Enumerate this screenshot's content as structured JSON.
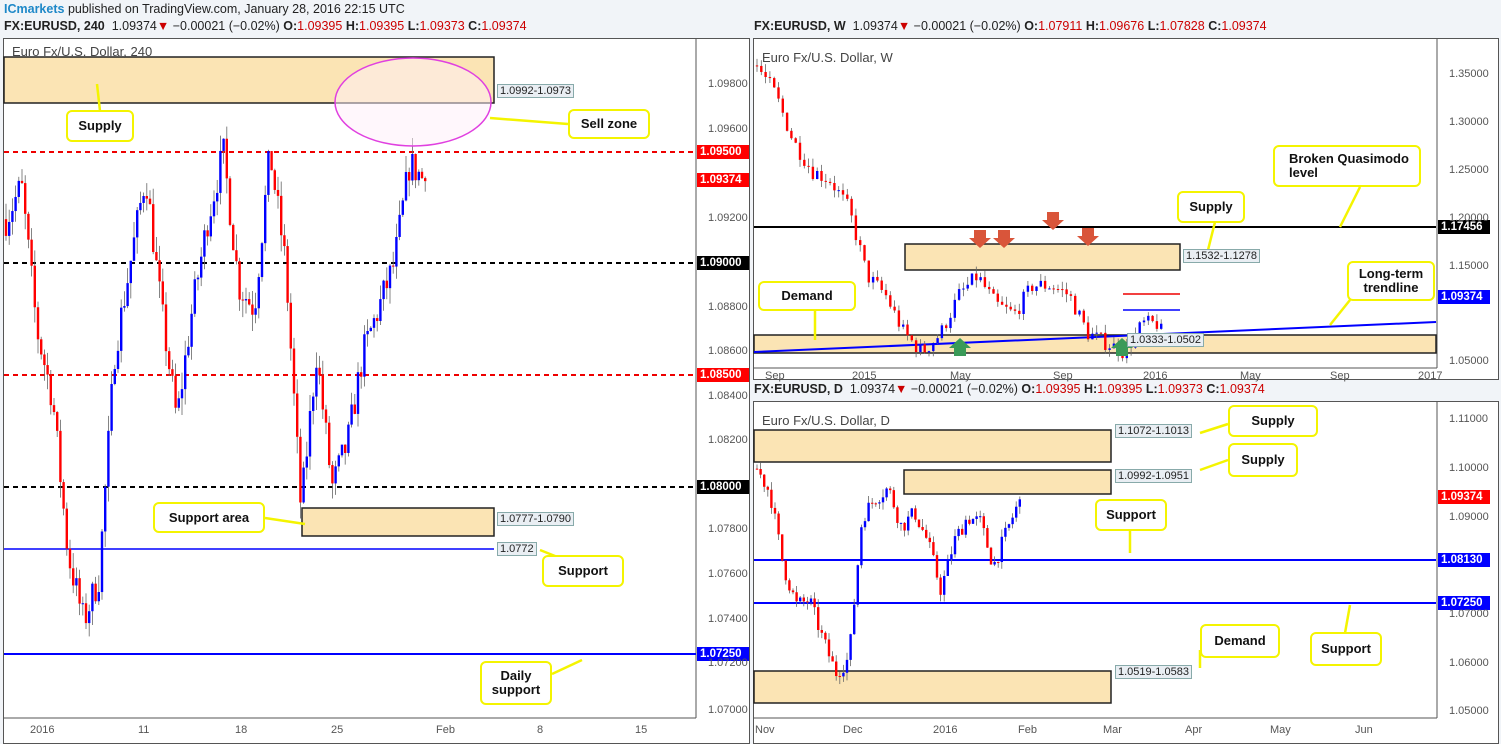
{
  "publisher": {
    "name": "ICmarkets",
    "text": "published on TradingView.com, January 28, 2016 22:15 UTC"
  },
  "charts": [
    {
      "symbol": "FX:EURUSD, 240",
      "last": "1.09374",
      "change": "−0.00021 (−0.02%)",
      "o": "1.09395",
      "h": "1.09395",
      "l": "1.09373",
      "c": "1.09374",
      "title": "Euro Fx/U.S. Dollar, 240"
    },
    {
      "symbol": "FX:EURUSD, W",
      "last": "1.09374",
      "change": "−0.00021 (−0.02%)",
      "o": "1.07911",
      "h": "1.09676",
      "l": "1.07828",
      "c": "1.09374",
      "title": "Euro Fx/U.S. Dollar, W"
    },
    {
      "symbol": "FX:EURUSD, D",
      "last": "1.09374",
      "change": "−0.00021 (−0.02%)",
      "o": "1.09395",
      "h": "1.09395",
      "l": "1.09373",
      "c": "1.09374",
      "title": "Euro Fx/U.S. Dollar, D"
    }
  ],
  "colors": {
    "up": "#0000ff",
    "down": "#ff0000",
    "zone": "#fbe4b4",
    "callout_border": "#f4f400"
  },
  "chart_data": [
    {
      "type": "candlestick",
      "timeframe": "240",
      "ylim": [
        1.0695,
        1.0995
      ],
      "y_ticks": [
        "1.09800",
        "1.09600",
        "1.09200",
        "1.08800",
        "1.08600",
        "1.08400",
        "1.08200",
        "1.07800",
        "1.07600",
        "1.07400",
        "1.07200",
        "1.07000"
      ],
      "x_ticks": [
        "2016",
        "11",
        "18",
        "25",
        "Feb",
        "8",
        "15"
      ],
      "close_path": [
        1.092,
        1.0935,
        1.087,
        1.084,
        1.077,
        1.074,
        1.076,
        1.086,
        1.09,
        1.094,
        1.088,
        1.083,
        1.088,
        1.092,
        1.095,
        1.089,
        1.088,
        1.095,
        1.09,
        1.079,
        1.086,
        1.08,
        1.082,
        1.086,
        1.088,
        1.09,
        1.0945,
        1.0937
      ],
      "levels": [
        {
          "price": "1.09500",
          "style": "red-dashed"
        },
        {
          "price": "1.09000",
          "style": "black-dashed"
        },
        {
          "price": "1.08500",
          "style": "red-dashed"
        },
        {
          "price": "1.08000",
          "style": "black-dashed"
        },
        {
          "price": "1.07250",
          "style": "blue"
        }
      ],
      "current_price": "1.09374",
      "zones": [
        {
          "label": "1.0992-1.0973"
        },
        {
          "label": "1.0777-1.0790"
        }
      ],
      "support_line": "1.0772",
      "annotations": [
        "Supply",
        "Sell zone",
        "Support area",
        "Support",
        "Daily support"
      ]
    },
    {
      "type": "candlestick",
      "timeframe": "W",
      "ylim": [
        1.03,
        1.37
      ],
      "y_ticks": [
        "1.35000",
        "1.30000",
        "1.25000",
        "1.20000",
        "1.15000",
        "1.05000"
      ],
      "x_ticks": [
        "Sep",
        "2015",
        "May",
        "Sep",
        "2016",
        "May",
        "Sep",
        "2017"
      ],
      "close_path": [
        1.36,
        1.33,
        1.28,
        1.25,
        1.24,
        1.21,
        1.14,
        1.12,
        1.08,
        1.06,
        1.08,
        1.12,
        1.14,
        1.11,
        1.1,
        1.13,
        1.13,
        1.12,
        1.08,
        1.07,
        1.06,
        1.09,
        1.09
      ],
      "levels": [
        {
          "price": "1.17456",
          "style": "black"
        }
      ],
      "current_price": "1.09374",
      "zones": [
        {
          "label": "1.1532-1.1278"
        },
        {
          "label": "1.0333-1.0502"
        }
      ],
      "annotations": [
        "Broken Quasimodo level",
        "Supply",
        "Long-term trendline",
        "Demand"
      ]
    },
    {
      "type": "candlestick",
      "timeframe": "D",
      "ylim": [
        1.046,
        1.114
      ],
      "y_ticks": [
        "1.11000",
        "1.10000",
        "1.09000",
        "1.07000",
        "1.06000",
        "1.05000"
      ],
      "x_ticks": [
        "Nov",
        "Dec",
        "2016",
        "Feb",
        "Mar",
        "Apr",
        "May",
        "Jun"
      ],
      "close_path": [
        1.1,
        1.095,
        1.08,
        1.072,
        1.073,
        1.065,
        1.058,
        1.061,
        1.09,
        1.094,
        1.096,
        1.088,
        1.091,
        1.085,
        1.075,
        1.085,
        1.09,
        1.089,
        1.08,
        1.087,
        1.0937
      ],
      "levels": [
        {
          "price": "1.08130",
          "style": "blue"
        },
        {
          "price": "1.07250",
          "style": "blue"
        }
      ],
      "current_price": "1.09374",
      "zones": [
        {
          "label": "1.1072-1.1013"
        },
        {
          "label": "1.0992-1.0951"
        },
        {
          "label": "1.0519-1.0583"
        }
      ],
      "annotations": [
        "Supply",
        "Supply",
        "Support",
        "Support",
        "Demand"
      ]
    }
  ]
}
